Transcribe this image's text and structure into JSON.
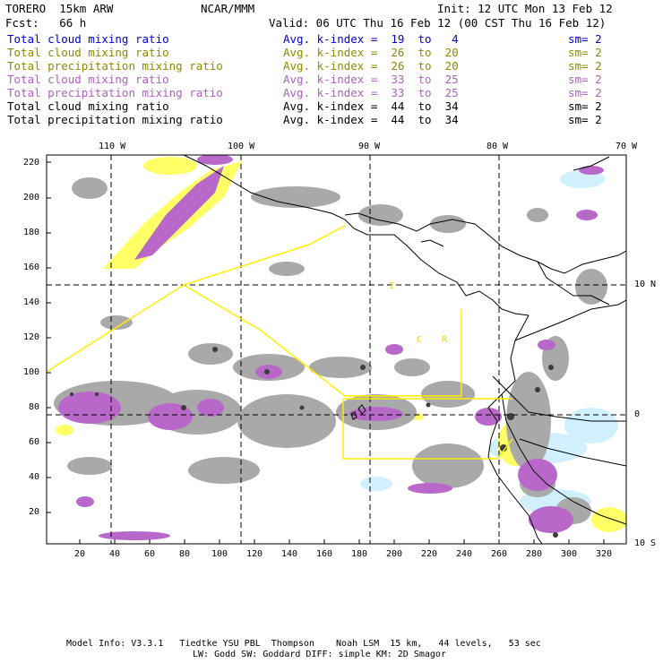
{
  "header": {
    "model": "TORERO  15km ARW",
    "org": "NCAR/MMM",
    "init": "Init: 12 UTC Mon 13 Feb 12",
    "fcst": "Fcst:   66 h",
    "valid": "Valid: 06 UTC Thu 16 Feb 12 (00 CST Thu 16 Feb 12)"
  },
  "legend": [
    {
      "field": "Total cloud mixing ratio",
      "index": "Avg. k-index =  19  to   4",
      "sm": "sm= 2",
      "color": "#0000cc"
    },
    {
      "field": "Total cloud mixing ratio",
      "index": "Avg. k-index =  26  to  20",
      "sm": "sm= 2",
      "color": "#8c8c00"
    },
    {
      "field": "Total precipitation mixing ratio",
      "index": "Avg. k-index =  26  to  20",
      "sm": "sm= 2",
      "color": "#8c8c00"
    },
    {
      "field": "Total cloud mixing ratio",
      "index": "Avg. k-index =  33  to  25",
      "sm": "sm= 2",
      "color": "#b060c0"
    },
    {
      "field": "Total precipitation mixing ratio",
      "index": "Avg. k-index =  33  to  25",
      "sm": "sm= 2",
      "color": "#b060c0"
    },
    {
      "field": "Total cloud mixing ratio",
      "index": "Avg. k-index =  44  to  34",
      "sm": "sm= 2",
      "color": "#000000"
    },
    {
      "field": "Total precipitation mixing ratio",
      "index": "Avg. k-index =  44  to  34",
      "sm": "sm= 2",
      "color": "#000000"
    }
  ],
  "axes": {
    "top_labels": [
      "110 W",
      "100 W",
      "90 W",
      "80 W",
      "70 W"
    ],
    "right_labels": [
      "10 N",
      "0",
      "10 S"
    ],
    "left_ticks": [
      "220",
      "200",
      "180",
      "160",
      "140",
      "120",
      "100",
      "80",
      "60",
      "40",
      "20"
    ],
    "bottom_ticks": [
      "20",
      "40",
      "60",
      "80",
      "100",
      "120",
      "140",
      "160",
      "180",
      "200",
      "220",
      "240",
      "260",
      "280",
      "300",
      "320"
    ]
  },
  "map_labels": {
    "l1": "I",
    "l2": "C",
    "l3": "R"
  },
  "footer": {
    "line1": "Model Info: V3.3.1   Tiedtke YSU PBL  Thompson    Noah LSM  15 km,   44 levels,   53 sec",
    "line2": "LW: Godd SW: Goddard DIFF: simple KM: 2D Smagor"
  },
  "colors": {
    "gray_cloud": "#a8a8a8",
    "purple_precip": "#b868c8",
    "yellow_cloud": "#ffff66",
    "lightblue": "#ccf0ff",
    "frame": "#000000",
    "domain_box": "#ffee00"
  }
}
